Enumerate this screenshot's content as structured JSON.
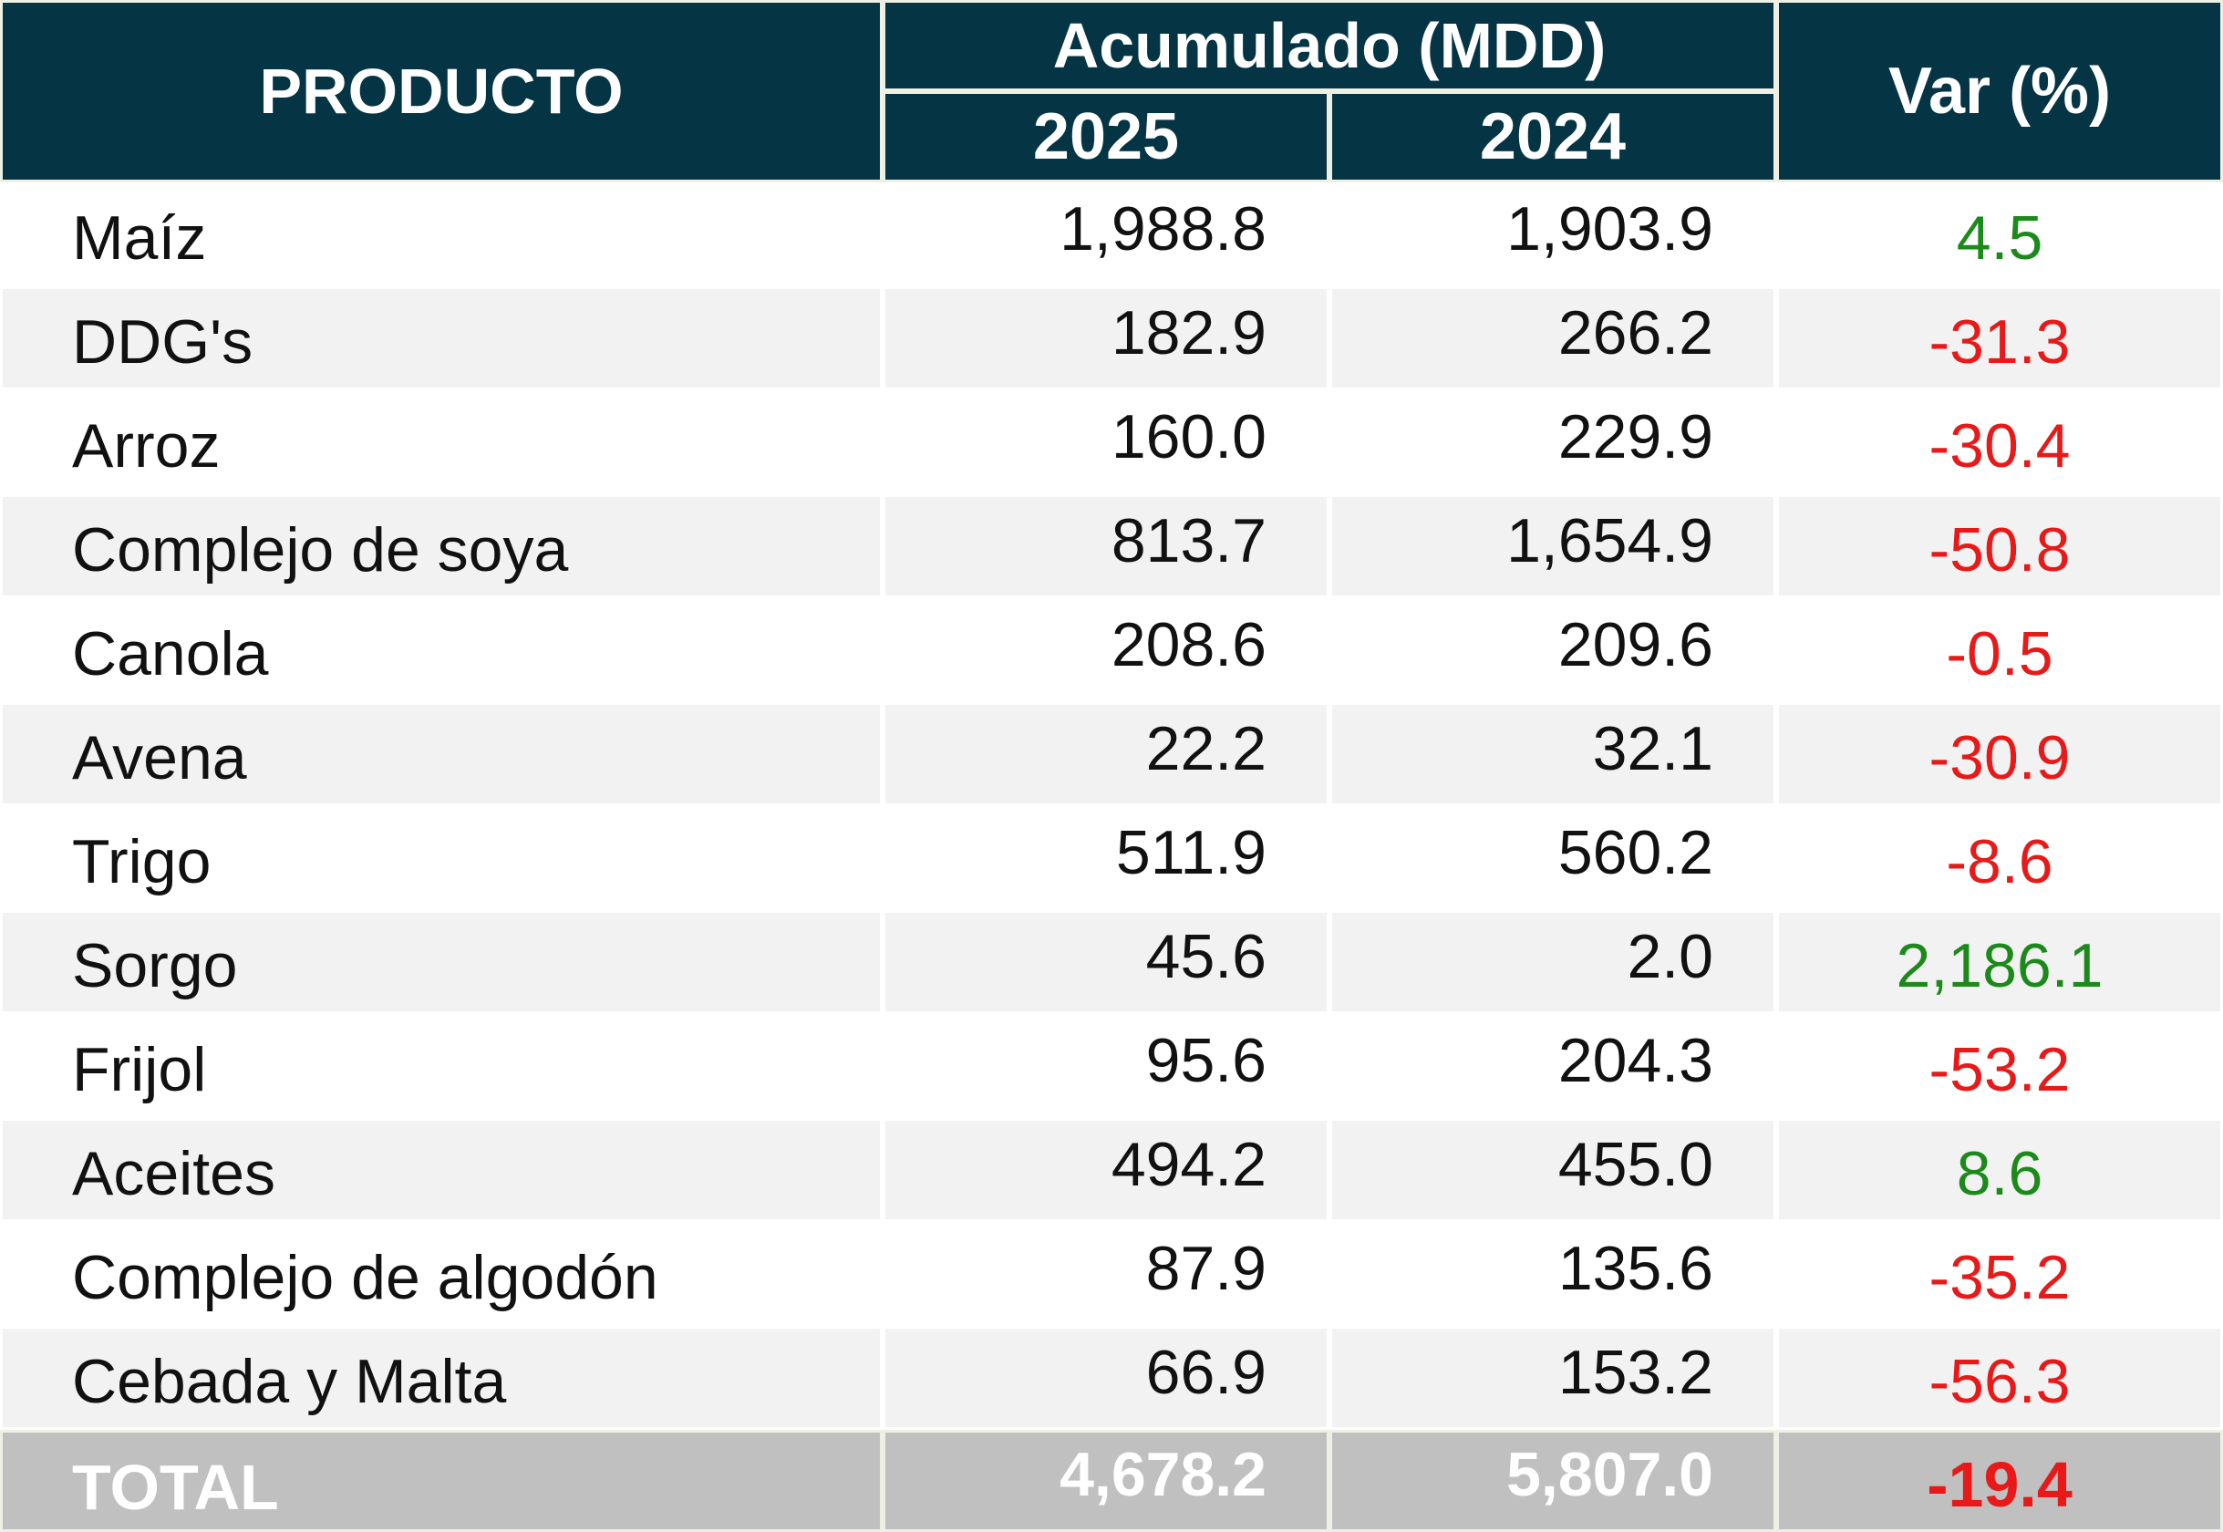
{
  "header": {
    "product": "PRODUCTO",
    "accumulated": "Acumulado (MDD)",
    "year_current": "2025",
    "year_previous": "2024",
    "variation": "Var (%)"
  },
  "rows": [
    {
      "product": "Maíz",
      "y2025": "1,988.8",
      "y2024": "1,903.9",
      "var": "4.5",
      "trend": "positive"
    },
    {
      "product": "DDG's",
      "y2025": "182.9",
      "y2024": "266.2",
      "var": "-31.3",
      "trend": "negative"
    },
    {
      "product": "Arroz",
      "y2025": "160.0",
      "y2024": "229.9",
      "var": "-30.4",
      "trend": "negative"
    },
    {
      "product": "Complejo de soya",
      "y2025": "813.7",
      "y2024": "1,654.9",
      "var": "-50.8",
      "trend": "negative"
    },
    {
      "product": "Canola",
      "y2025": "208.6",
      "y2024": "209.6",
      "var": "-0.5",
      "trend": "negative"
    },
    {
      "product": "Avena",
      "y2025": "22.2",
      "y2024": "32.1",
      "var": "-30.9",
      "trend": "negative"
    },
    {
      "product": "Trigo",
      "y2025": "511.9",
      "y2024": "560.2",
      "var": "-8.6",
      "trend": "negative"
    },
    {
      "product": "Sorgo",
      "y2025": "45.6",
      "y2024": "2.0",
      "var": "2,186.1",
      "trend": "positive"
    },
    {
      "product": "Frijol",
      "y2025": "95.6",
      "y2024": "204.3",
      "var": "-53.2",
      "trend": "negative"
    },
    {
      "product": "Aceites",
      "y2025": "494.2",
      "y2024": "455.0",
      "var": "8.6",
      "trend": "positive"
    },
    {
      "product": "Complejo de algodón",
      "y2025": "87.9",
      "y2024": "135.6",
      "var": "-35.2",
      "trend": "negative"
    },
    {
      "product": "Cebada y Malta",
      "y2025": "66.9",
      "y2024": "153.2",
      "var": "-56.3",
      "trend": "negative"
    }
  ],
  "total": {
    "label": "TOTAL",
    "y2025": "4,678.2",
    "y2024": "5,807.0",
    "var": "-19.4"
  },
  "colors": {
    "header_bg": "#053545",
    "positive": "#1b8a1b",
    "negative": "#e81919",
    "total_bg": "#c0c0c0",
    "alt_row_bg": "#f2f2f2"
  }
}
